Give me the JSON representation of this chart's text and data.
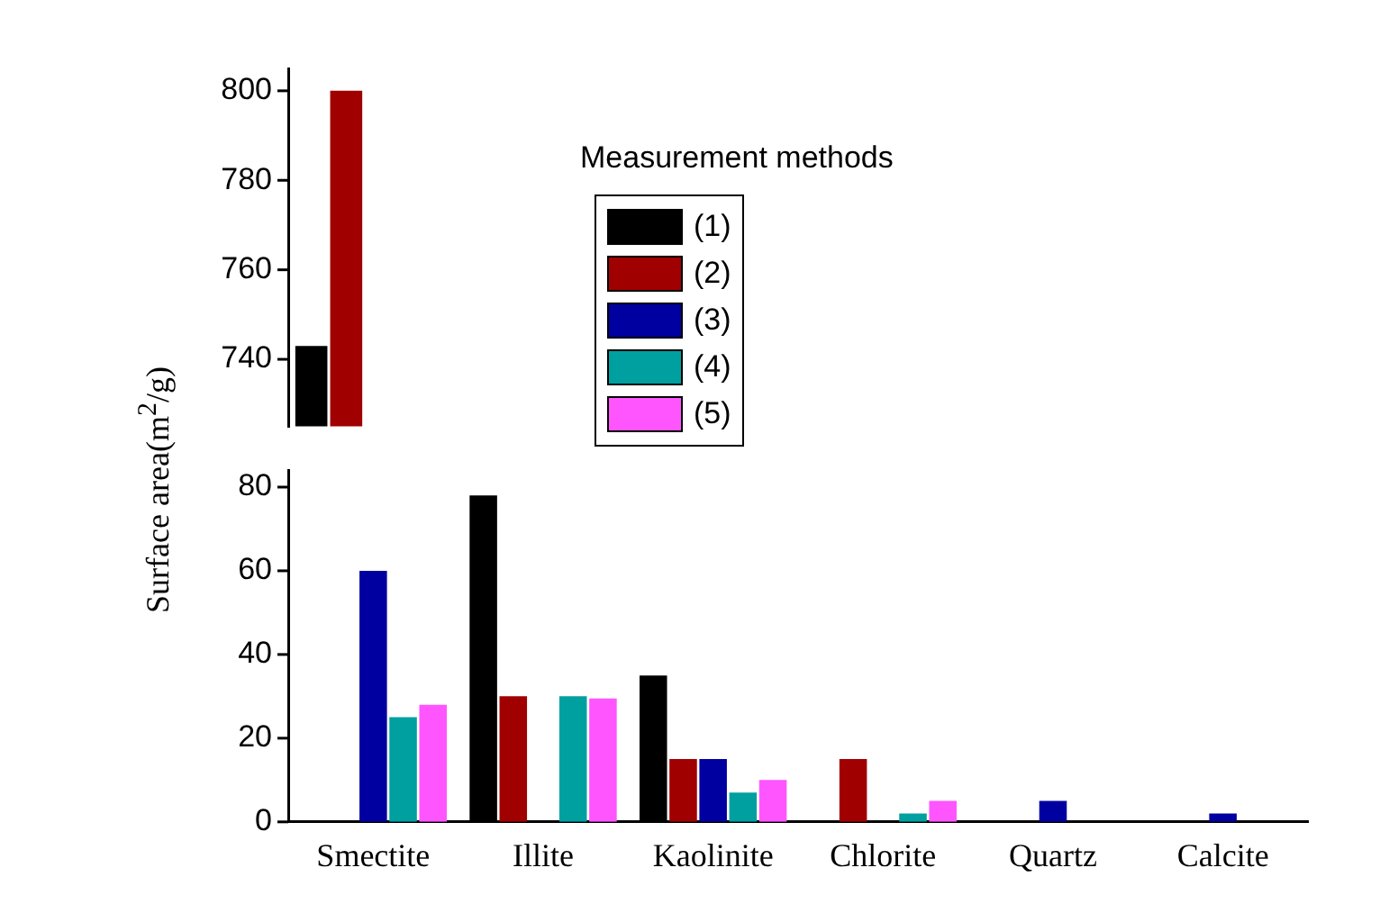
{
  "chart_data": [
    {
      "type": "bar",
      "ylabel": "Surface area(m$^{2}$/g)",
      "tick_labels": "y",
      "categories": [
        null
      ],
      "ylim": [
        725,
        805
      ],
      "yticks": [
        740,
        760,
        780,
        800
      ],
      "series": [
        {
          "color": "#000000",
          "values": [
            743
          ]
        },
        {
          "color": "#a00000",
          "values": [
            800
          ]
        }
      ]
    },
    {
      "type": "bar",
      "legend": "top",
      "legend_title": "Measurement methods",
      "categories": [
        "Smectite",
        "Illite",
        "Kaolinite",
        "Chlorite",
        "Quartz",
        "Calcite"
      ],
      "ylim": [
        0,
        84
      ],
      "yticks": [
        0,
        20,
        40,
        60,
        80
      ],
      "series": [
        {
          "name": "(1)",
          "color": "#000000",
          "values": [
            null,
            78,
            35,
            null,
            null,
            null
          ]
        },
        {
          "name": "(2)",
          "color": "#a00000",
          "values": [
            null,
            30,
            15,
            15,
            null,
            null
          ]
        },
        {
          "name": "(3)",
          "color": "#0000a0",
          "values": [
            60,
            null,
            15,
            null,
            5,
            2
          ]
        },
        {
          "name": "(4)",
          "color": "#00a0a0",
          "values": [
            25,
            30,
            7,
            2,
            null,
            null
          ]
        },
        {
          "name": "(5)",
          "color": "#ff55ff",
          "values": [
            28,
            29.5,
            10,
            5,
            null,
            null
          ]
        }
      ]
    }
  ]
}
